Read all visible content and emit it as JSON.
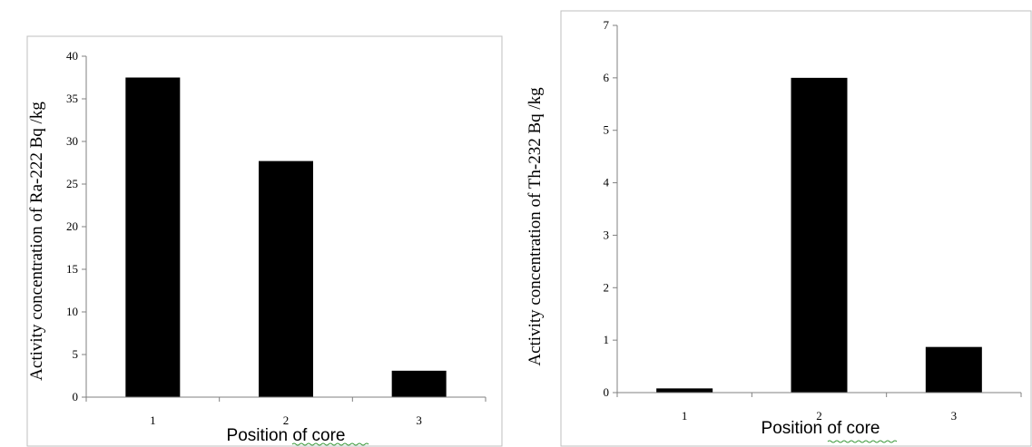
{
  "chart_data": [
    {
      "type": "bar",
      "categories": [
        "1",
        "2",
        "3"
      ],
      "values": [
        37.5,
        27.7,
        3.1
      ],
      "xlabel": "Position of  core",
      "ylabel": "Activity concentration of Ra-222 Bq /kg",
      "ylim": [
        0,
        40
      ],
      "yticks": [
        0,
        5,
        10,
        15,
        20,
        25,
        30,
        35,
        40
      ],
      "bar_color": "#000000",
      "grid": false
    },
    {
      "type": "bar",
      "categories": [
        "1",
        "2",
        "3"
      ],
      "values": [
        0.08,
        6.0,
        0.87
      ],
      "xlabel": "Position of  core",
      "ylabel": "Activity concentration of Th-232 Bq /kg",
      "ylim": [
        0,
        7
      ],
      "yticks": [
        0,
        1,
        2,
        3,
        4,
        5,
        6,
        7
      ],
      "bar_color": "#000000",
      "grid": false
    }
  ]
}
